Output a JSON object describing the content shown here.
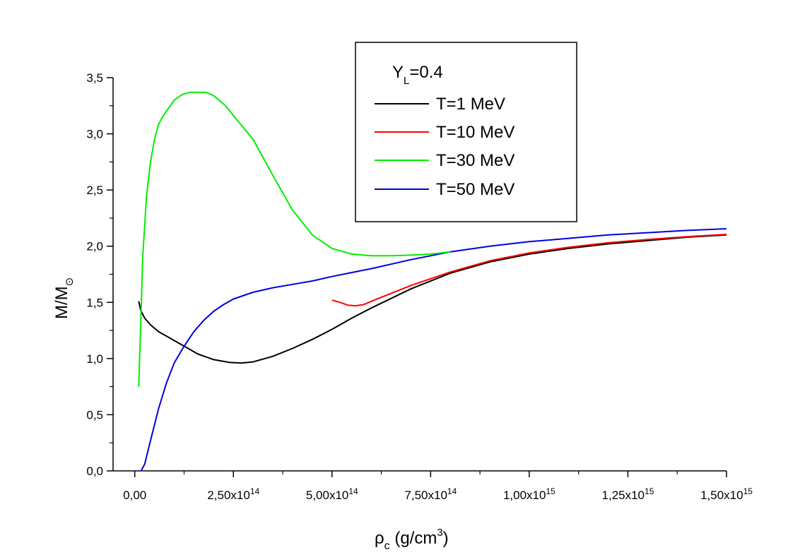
{
  "chart_data": {
    "type": "line",
    "title": "",
    "xlabel": {
      "symbol": "ρ",
      "sub": "c",
      "unit_pre": " (g/cm",
      "unit_sup": "3",
      "unit_post": ")"
    },
    "ylabel": {
      "text": "M/M",
      "sub": "⊙"
    },
    "xlim": [
      -55000000000000.0,
      1500000000000000.0
    ],
    "ylim": [
      0.0,
      3.5
    ],
    "x_ticks": [
      {
        "value": 0,
        "mantissa": "0,00",
        "exp": ""
      },
      {
        "value": 250000000000000.0,
        "mantissa": "2,50x10",
        "exp": "14"
      },
      {
        "value": 500000000000000.0,
        "mantissa": "5,00x10",
        "exp": "14"
      },
      {
        "value": 750000000000000.0,
        "mantissa": "7,50x10",
        "exp": "14"
      },
      {
        "value": 1000000000000000.0,
        "mantissa": "1,00x10",
        "exp": "15"
      },
      {
        "value": 1250000000000000.0,
        "mantissa": "1,25x10",
        "exp": "15"
      },
      {
        "value": 1500000000000000.0,
        "mantissa": "1,50x10",
        "exp": "15"
      }
    ],
    "x_minor_ticks": [
      125000000000000.0,
      375000000000000.0,
      625000000000000.0,
      875000000000000.0,
      1125000000000000.0,
      1375000000000000.0
    ],
    "y_ticks": [
      {
        "value": 0.0,
        "label": "0,0"
      },
      {
        "value": 0.5,
        "label": "0,5"
      },
      {
        "value": 1.0,
        "label": "1,0"
      },
      {
        "value": 1.5,
        "label": "1,5"
      },
      {
        "value": 2.0,
        "label": "2,0"
      },
      {
        "value": 2.5,
        "label": "2,5"
      },
      {
        "value": 3.0,
        "label": "3,0"
      },
      {
        "value": 3.5,
        "label": "3,5"
      }
    ],
    "y_minor_ticks": [
      0.25,
      0.75,
      1.25,
      1.75,
      2.25,
      2.75,
      3.25
    ],
    "legend": {
      "placement": "top-center",
      "title_main": "Y",
      "title_sub": "L",
      "title_rest": "=0.4"
    },
    "series": [
      {
        "name": "T=1 MeV",
        "color": "#000000",
        "x": [
          10000000000000.0,
          15000000000000.0,
          25000000000000.0,
          40000000000000.0,
          60000000000000.0,
          80000000000000.0,
          100000000000000.0,
          130000000000000.0,
          160000000000000.0,
          200000000000000.0,
          240000000000000.0,
          270000000000000.0,
          300000000000000.0,
          350000000000000.0,
          400000000000000.0,
          450000000000000.0,
          500000000000000.0,
          550000000000000.0,
          600000000000000.0,
          700000000000000.0,
          800000000000000.0,
          900000000000000.0,
          1000000000000000.0,
          1100000000000000.0,
          1200000000000000.0,
          1300000000000000.0,
          1400000000000000.0,
          1500000000000000.0
        ],
        "y": [
          1.51,
          1.43,
          1.36,
          1.3,
          1.24,
          1.2,
          1.16,
          1.1,
          1.04,
          0.99,
          0.965,
          0.96,
          0.97,
          1.02,
          1.09,
          1.17,
          1.26,
          1.36,
          1.45,
          1.62,
          1.76,
          1.86,
          1.93,
          1.98,
          2.02,
          2.05,
          2.08,
          2.1
        ]
      },
      {
        "name": "T=10 MeV",
        "color": "#ff0000",
        "x": [
          500000000000000.0,
          520000000000000.0,
          540000000000000.0,
          560000000000000.0,
          580000000000000.0,
          600000000000000.0,
          650000000000000.0,
          700000000000000.0,
          800000000000000.0,
          900000000000000.0,
          1000000000000000.0,
          1100000000000000.0,
          1200000000000000.0,
          1300000000000000.0,
          1400000000000000.0,
          1500000000000000.0
        ],
        "y": [
          1.52,
          1.5,
          1.475,
          1.47,
          1.48,
          1.51,
          1.58,
          1.65,
          1.77,
          1.87,
          1.94,
          1.99,
          2.03,
          2.06,
          2.085,
          2.105
        ]
      },
      {
        "name": "T=30 MeV",
        "color": "#00ee00",
        "x": [
          10000000000000.0,
          15000000000000.0,
          20000000000000.0,
          30000000000000.0,
          40000000000000.0,
          50000000000000.0,
          60000000000000.0,
          70000000000000.0,
          80000000000000.0,
          100000000000000.0,
          120000000000000.0,
          140000000000000.0,
          160000000000000.0,
          180000000000000.0,
          200000000000000.0,
          230000000000000.0,
          260000000000000.0,
          300000000000000.0,
          350000000000000.0,
          400000000000000.0,
          450000000000000.0,
          500000000000000.0,
          550000000000000.0,
          600000000000000.0,
          650000000000000.0,
          700000000000000.0,
          750000000000000.0,
          800000000000000.0
        ],
        "y": [
          0.75,
          1.3,
          1.9,
          2.45,
          2.75,
          2.95,
          3.08,
          3.15,
          3.2,
          3.3,
          3.35,
          3.37,
          3.37,
          3.37,
          3.34,
          3.25,
          3.12,
          2.95,
          2.63,
          2.32,
          2.1,
          1.98,
          1.93,
          1.915,
          1.915,
          1.92,
          1.93,
          1.95
        ]
      },
      {
        "name": "T=50 MeV",
        "color": "#0000dd",
        "x": [
          16000000000000.0,
          25000000000000.0,
          40000000000000.0,
          60000000000000.0,
          80000000000000.0,
          100000000000000.0,
          125000000000000.0,
          150000000000000.0,
          175000000000000.0,
          200000000000000.0,
          225000000000000.0,
          250000000000000.0,
          300000000000000.0,
          350000000000000.0,
          400000000000000.0,
          450000000000000.0,
          500000000000000.0,
          600000000000000.0,
          700000000000000.0,
          800000000000000.0,
          900000000000000.0,
          1000000000000000.0,
          1100000000000000.0,
          1200000000000000.0,
          1300000000000000.0,
          1400000000000000.0,
          1500000000000000.0
        ],
        "y": [
          0.0,
          0.06,
          0.27,
          0.55,
          0.78,
          0.96,
          1.11,
          1.24,
          1.34,
          1.42,
          1.48,
          1.53,
          1.59,
          1.63,
          1.66,
          1.69,
          1.73,
          1.8,
          1.88,
          1.95,
          2.0,
          2.04,
          2.07,
          2.1,
          2.12,
          2.14,
          2.155
        ]
      }
    ]
  }
}
